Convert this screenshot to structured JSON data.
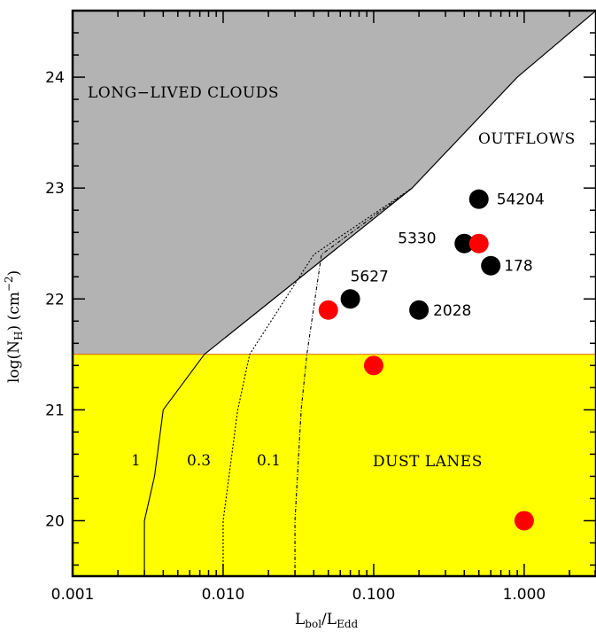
{
  "chart_data": {
    "type": "scatter",
    "title": "",
    "xlabel": "L_bol/L_Edd",
    "ylabel": "log(N_H) (cm^-2)",
    "xlabel_parts": {
      "main": "L",
      "sub1": "bol",
      "slash": "/L",
      "sub2": "Edd"
    },
    "ylabel_parts": {
      "pre": "log(N",
      "sub": "H",
      "post": ")  (cm",
      "sup": "−2",
      "end": ")"
    },
    "xscale": "log",
    "xlim": [
      0.001,
      3.0
    ],
    "ylim": [
      19.5,
      24.6
    ],
    "x_ticks": [
      {
        "value": 0.001,
        "label": "0.001"
      },
      {
        "value": 0.01,
        "label": "0.010"
      },
      {
        "value": 0.1,
        "label": "0.100"
      },
      {
        "value": 1.0,
        "label": "1.000"
      }
    ],
    "y_ticks": [
      {
        "value": 20,
        "label": "20"
      },
      {
        "value": 21,
        "label": "21"
      },
      {
        "value": 22,
        "label": "22"
      },
      {
        "value": 23,
        "label": "23"
      },
      {
        "value": 24,
        "label": "24"
      }
    ],
    "regions": [
      {
        "name": "LONG−LIVED CLOUDS",
        "color": "#b3b3b3"
      },
      {
        "name": "OUTFLOWS",
        "color": "#ffffff"
      },
      {
        "name": "DUST LANES",
        "color": "#ffff00"
      }
    ],
    "dust_lane_boundary_y": 21.5,
    "boundary_curve": [
      [
        0.0075,
        21.5
      ],
      [
        0.18,
        23.0
      ],
      [
        0.9,
        24.0
      ],
      [
        3.0,
        24.6
      ]
    ],
    "effective_eddington_curves": [
      {
        "label": "1",
        "style": "solid",
        "points": [
          [
            0.003,
            19.5
          ],
          [
            0.003,
            20.0
          ],
          [
            0.0035,
            20.4
          ],
          [
            0.004,
            21.0
          ],
          [
            0.0075,
            21.5
          ]
        ]
      },
      {
        "label": "0.3",
        "style": "dashed",
        "points": [
          [
            0.01,
            19.5
          ],
          [
            0.01,
            20.0
          ],
          [
            0.0125,
            21.0
          ],
          [
            0.015,
            21.5
          ],
          [
            0.04,
            22.4
          ],
          [
            0.18,
            23.0
          ]
        ]
      },
      {
        "label": "0.1",
        "style": "dashdot",
        "points": [
          [
            0.03,
            19.5
          ],
          [
            0.03,
            20.0
          ],
          [
            0.033,
            21.0
          ],
          [
            0.036,
            21.5
          ],
          [
            0.045,
            22.4
          ],
          [
            0.18,
            23.0
          ]
        ]
      }
    ],
    "series": [
      {
        "color": "#000000",
        "points": [
          {
            "x": 0.5,
            "y": 22.9,
            "label": "54204"
          },
          {
            "x": 0.4,
            "y": 22.5,
            "label": "5330"
          },
          {
            "x": 0.6,
            "y": 22.3,
            "label": "178"
          },
          {
            "x": 0.07,
            "y": 22.0,
            "label": "5627"
          },
          {
            "x": 0.2,
            "y": 21.9,
            "label": "2028"
          }
        ]
      },
      {
        "color": "#ff0000",
        "points": [
          {
            "x": 0.5,
            "y": 22.5
          },
          {
            "x": 0.05,
            "y": 21.9
          },
          {
            "x": 0.1,
            "y": 21.4
          },
          {
            "x": 1.0,
            "y": 20.0
          }
        ]
      }
    ],
    "grid": false,
    "legend": "none"
  }
}
